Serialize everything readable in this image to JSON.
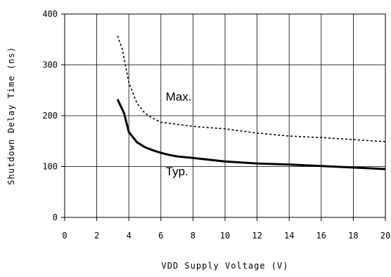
{
  "chart_data": {
    "type": "line",
    "xlabel": "VDD Supply Voltage (V)",
    "ylabel": "Shutdown Delay Time (ns)",
    "xlim": [
      0,
      20
    ],
    "ylim": [
      0,
      400
    ],
    "xticks": [
      0,
      2,
      4,
      6,
      8,
      10,
      12,
      14,
      16,
      18,
      20
    ],
    "yticks": [
      0,
      100,
      200,
      300,
      400
    ],
    "grid": true,
    "series": [
      {
        "name": "Max.",
        "style": "dotted",
        "x": [
          3.3,
          3.6,
          4.0,
          4.5,
          5.0,
          5.5,
          6.0,
          7.0,
          8.0,
          10.0,
          12.0,
          14.0,
          16.0,
          18.0,
          20.0
        ],
        "y": [
          357,
          330,
          265,
          225,
          205,
          195,
          187,
          183,
          179,
          174,
          166,
          160,
          157,
          153,
          149
        ]
      },
      {
        "name": "Typ.",
        "style": "solid",
        "x": [
          3.3,
          3.7,
          4.0,
          4.5,
          5.0,
          5.5,
          6.0,
          6.5,
          7.0,
          8.0,
          10.0,
          12.0,
          14.0,
          16.0,
          18.0,
          20.0
        ],
        "y": [
          232,
          205,
          168,
          148,
          138,
          132,
          127,
          123,
          120,
          117,
          110,
          106,
          104,
          101,
          98,
          95
        ]
      }
    ],
    "annotations": [
      {
        "text": "Max.",
        "x": 6.3,
        "y": 230
      },
      {
        "text": "Typ.",
        "x": 6.3,
        "y": 83
      }
    ]
  }
}
